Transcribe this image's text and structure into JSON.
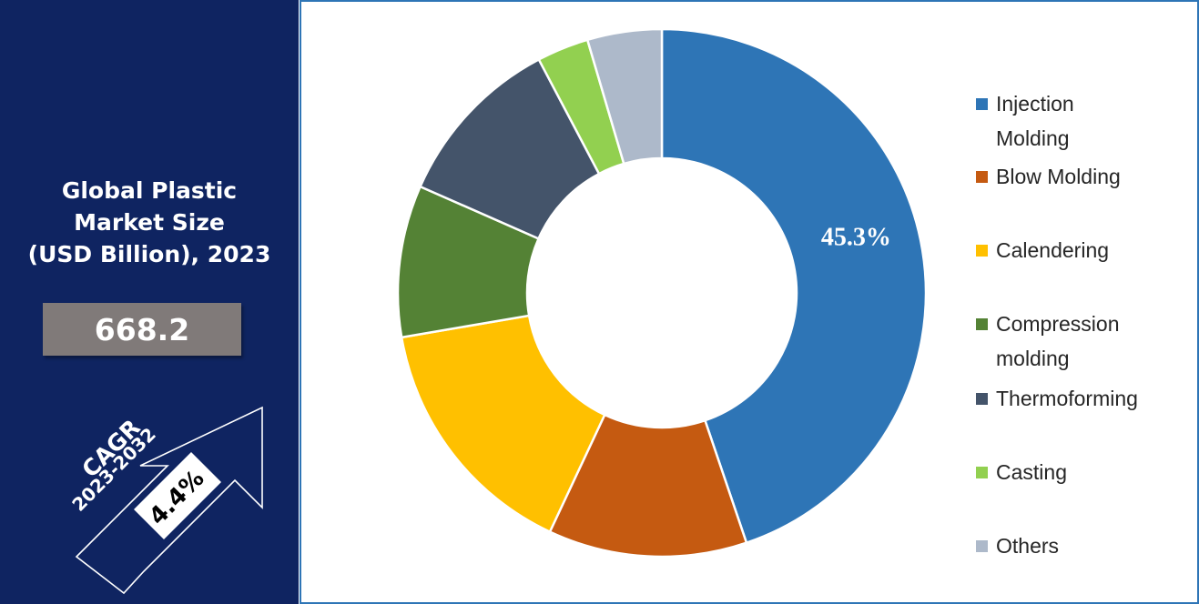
{
  "panel": {
    "title_lines": [
      "Global Plastic",
      "Market Size",
      "(USD Billion), 2023"
    ],
    "market_value": "668.2",
    "cagr_label": "CAGR",
    "cagr_period": "2023-2032",
    "cagr_value": "4.4%"
  },
  "colors": {
    "panel_background": "#0f2461",
    "value_box": "#807a79",
    "frame_border": "#2e75b6"
  },
  "chart_data": {
    "type": "pie",
    "variant": "donut",
    "categories": [
      "Injection Molding",
      "Blow Molding",
      "Calendering",
      "Compression molding",
      "Thermoforming",
      "Casting",
      "Others"
    ],
    "values": [
      45.3,
      12.3,
      15.5,
      9.4,
      10.8,
      3.2,
      4.6
    ],
    "colors": [
      "#2e75b6",
      "#c55a11",
      "#ffc000",
      "#548235",
      "#44546a",
      "#92d050",
      "#adb9ca"
    ],
    "data_labels": [
      {
        "category": "Injection Molding",
        "text": "45.3%"
      }
    ],
    "legend": {
      "position": "right",
      "entries": [
        {
          "lines": [
            "Injection",
            "Molding"
          ],
          "color": "#2e75b6"
        },
        {
          "lines": [
            "Blow Molding"
          ],
          "color": "#c55a11"
        },
        {
          "lines": [
            "Calendering"
          ],
          "color": "#ffc000"
        },
        {
          "lines": [
            "Compression",
            "molding"
          ],
          "color": "#548235"
        },
        {
          "lines": [
            "Thermoforming"
          ],
          "color": "#44546a"
        },
        {
          "lines": [
            "Casting"
          ],
          "color": "#92d050"
        },
        {
          "lines": [
            "Others"
          ],
          "color": "#adb9ca"
        }
      ]
    }
  }
}
